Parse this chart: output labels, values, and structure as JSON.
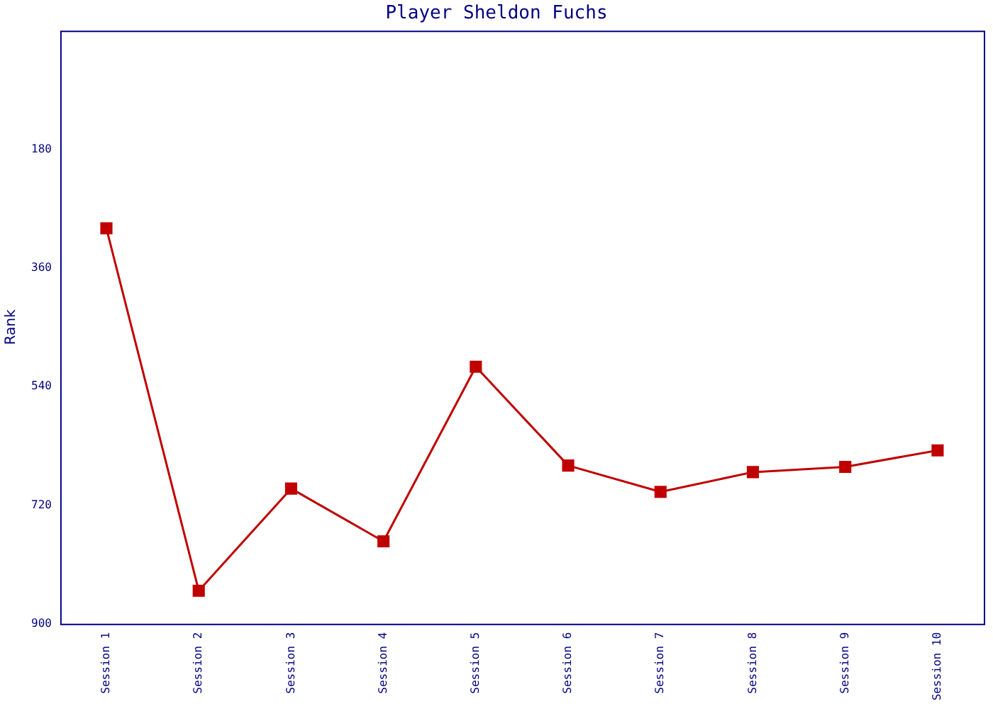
{
  "chart_data": {
    "type": "line",
    "title": "Player Sheldon Fuchs",
    "ylabel": "Rank",
    "categories": [
      "Session 1",
      "Session 2",
      "Session 3",
      "Session 4",
      "Session 5",
      "Session 6",
      "Session 7",
      "Session 8",
      "Session 9",
      "Session 10"
    ],
    "series": [
      {
        "color": "#c00000",
        "values": [
          300,
          850,
          695,
          775,
          510,
          660,
          700,
          670,
          662,
          637
        ]
      }
    ],
    "ylim": [
      900,
      0
    ],
    "yticks": [
      180,
      360,
      540,
      720,
      900
    ],
    "grid": false,
    "legend": false,
    "marker": "square",
    "line_style": "solid"
  }
}
